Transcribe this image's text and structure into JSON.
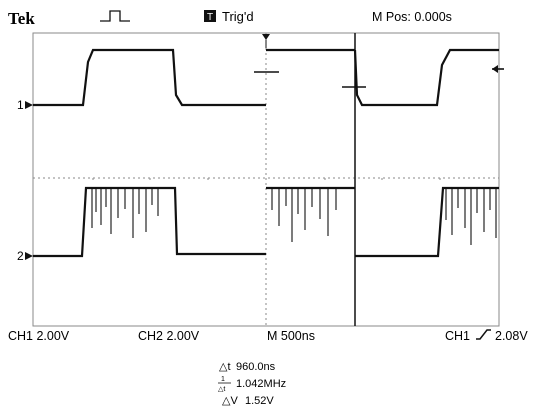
{
  "header": {
    "brand": "Tek",
    "trigger_state": "Trig'd",
    "trigger_badge_glyph": "T",
    "run_mode_icon": "acquisition-pulse-icon",
    "position_readout": "M Pos: 0.000s"
  },
  "channel_markers": {
    "ch1": "1",
    "ch2": "2"
  },
  "footer": {
    "ch1_scale": "CH1  2.00V",
    "ch2_scale": "CH2  2.00V",
    "timebase": "M 500ns",
    "trigger_channel": "CH1",
    "trigger_slope_icon": "rising-edge-icon",
    "trigger_level": "2.08V"
  },
  "measurements": {
    "delta_t": "960.0ns",
    "inverse_delta_t": "1.042MHz",
    "delta_v": "1.52V"
  },
  "colors": {
    "trace": "#111111",
    "graticule": "#777777",
    "background": "#ffffff"
  }
}
